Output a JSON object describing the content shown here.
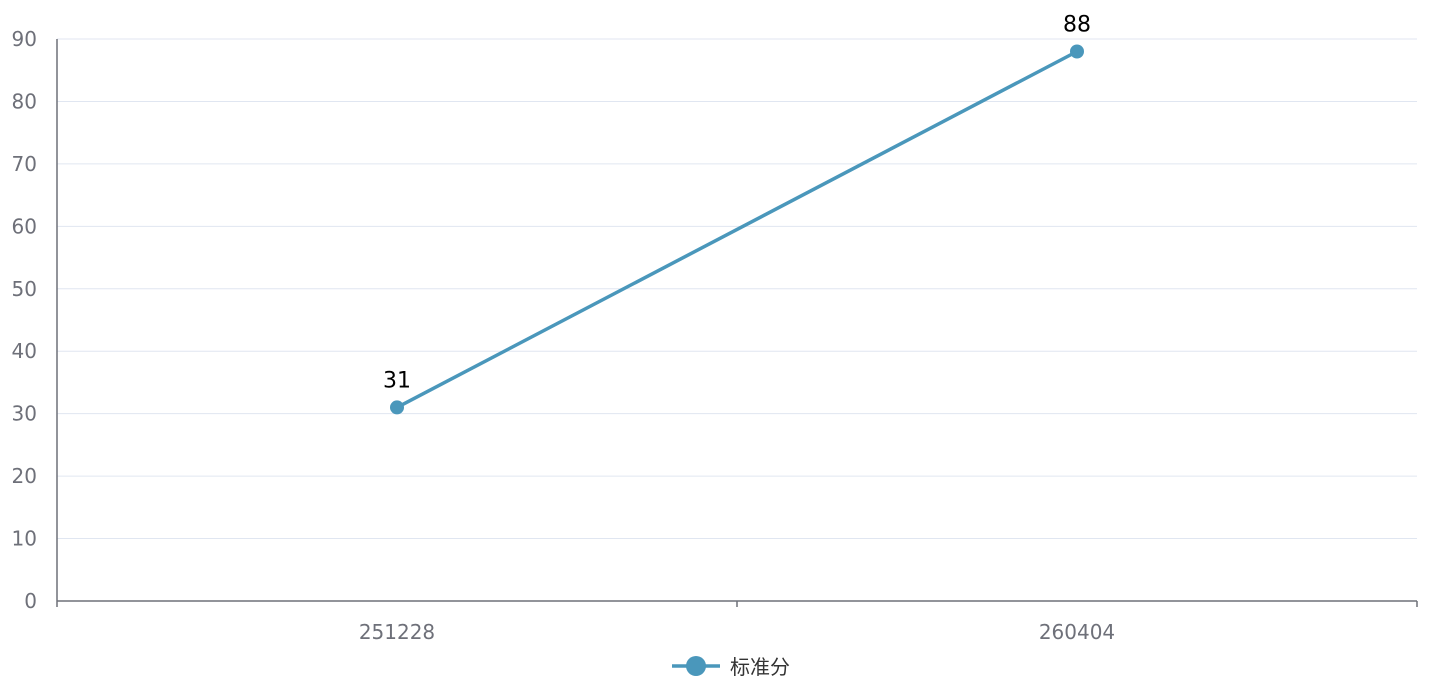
{
  "chart_data": {
    "type": "line",
    "categories": [
      "251228",
      "260404"
    ],
    "series": [
      {
        "name": "标准分",
        "values": [
          31,
          88
        ],
        "color": "#4a97bb"
      }
    ],
    "ylim": [
      0,
      90
    ],
    "yticks": [
      0,
      10,
      20,
      30,
      40,
      50,
      60,
      70,
      80,
      90
    ],
    "grid": true,
    "legend_position": "bottom-center",
    "data_labels": true
  }
}
